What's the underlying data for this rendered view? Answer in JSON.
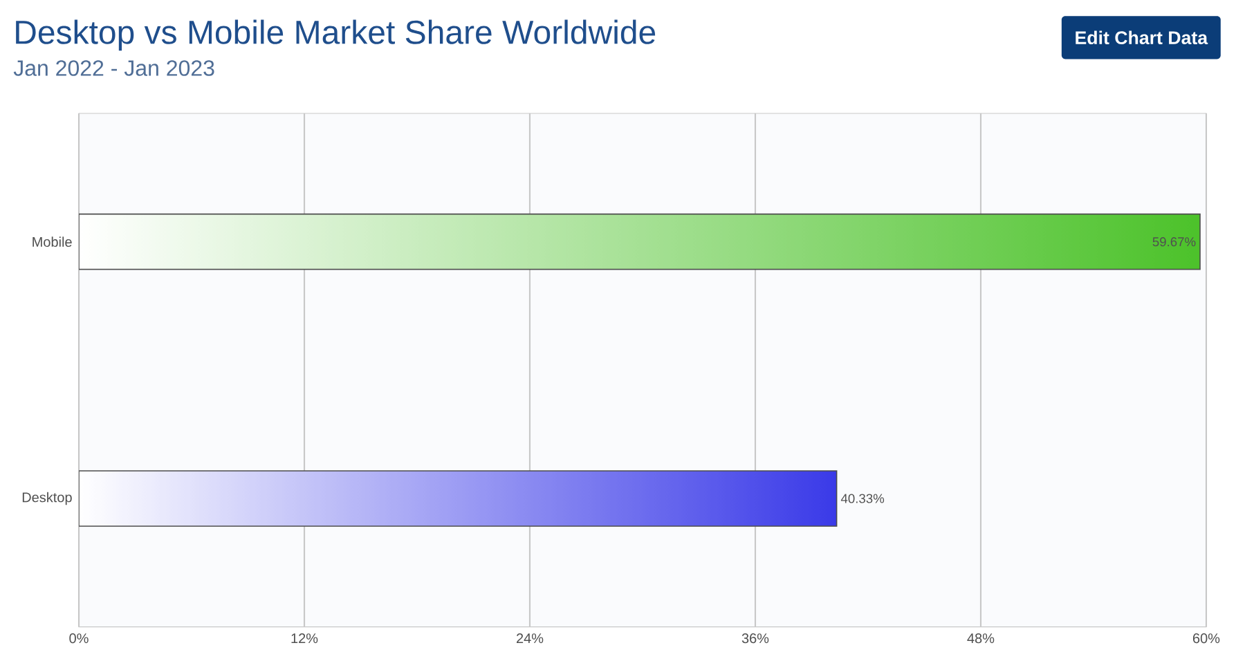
{
  "chart_data": {
    "type": "bar",
    "orientation": "horizontal",
    "title": "Desktop vs Mobile Market Share Worldwide",
    "subtitle": "Jan 2022 - Jan 2023",
    "categories": [
      "Mobile",
      "Desktop"
    ],
    "values": [
      59.67,
      40.33
    ],
    "colors": [
      "#4cc22a",
      "#3a3ae8"
    ],
    "value_labels": [
      "59.67%",
      "40.33%"
    ],
    "xlim": [
      0,
      60
    ],
    "xticks": [
      {
        "value": 0,
        "label": "0%"
      },
      {
        "value": 12,
        "label": "12%"
      },
      {
        "value": 24,
        "label": "24%"
      },
      {
        "value": 36,
        "label": "36%"
      },
      {
        "value": 48,
        "label": "48%"
      },
      {
        "value": 60,
        "label": "60%"
      }
    ],
    "grid": "x",
    "annotations": [
      "Edit Chart Data"
    ]
  }
}
